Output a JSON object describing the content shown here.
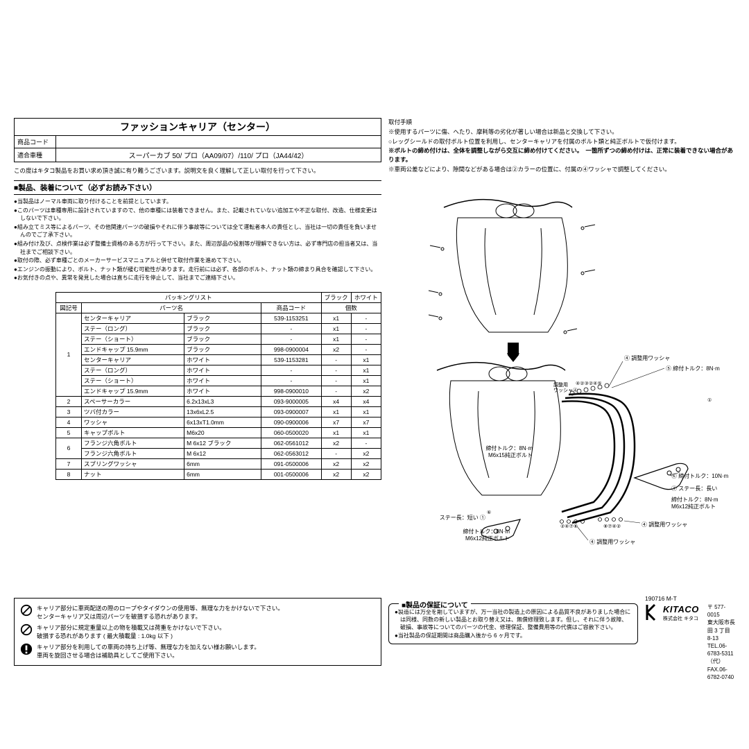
{
  "header": {
    "title": "ファッションキャリア（センター）",
    "code_label": "商品コード",
    "code_value": "",
    "model_label": "適合車種",
    "model_value": "スーパーカブ 50/ プロ（AA09/07）/110/ プロ（JA44/42）"
  },
  "intro": "この度はキタコ製品をお買い求め頂き誠に有り難うございます。説明文を良く理解して正しい取付を行って下さい。",
  "section1_title": "■製品、装着について（必ずお読み下さい）",
  "bullets": [
    "●当製品はノーマル車両に取り付けることを前提としています。",
    "●このパーツは車種専用に設計されていますので、他の車種には装着できません。また、記載されていない追加工や不正な取付、改造、仕様変更はしないで下さい。",
    "●組み立てミス等によるパーツ、その他関連パーツの破損やそれに伴う事故等については全て運転者本人の責任とし、当社は一切の責任を負いませんのでご了承下さい。",
    "●組み付け及び、点検作業は必ず整備士資格のある方が行って下さい。また、周辺部品の役割等が理解できない方は、必ず専門店の担当者又は、当社までご相談下さい。",
    "●取付の際、必ず車種ごとのメーカーサービスマニュアルと併せて取付作業を進めて下さい。",
    "●エンジンの振動により、ボルト、ナット類が緩む可能性があります。走行前には必ず、各部のボルト、ナット類の締まり具合を確認して下さい。",
    "●お気付きの点や、異常を発見した場合は直ちに走行を停止して、当社までご連絡下さい。"
  ],
  "packing": {
    "title": "パッキングリスト",
    "cols": {
      "no": "図記号",
      "name": "パーツ名",
      "code": "商品コード",
      "qty": "個数",
      "black": "ブラック",
      "white": "ホワイト"
    },
    "rows": [
      {
        "no": "1",
        "name": "センターキャリア",
        "spec": "ブラック",
        "code": "539-1153251",
        "b": "x1",
        "w": "-",
        "span": 8
      },
      {
        "no": "",
        "name": "ステー（ロング）",
        "spec": "ブラック",
        "code": "-",
        "b": "x1",
        "w": "-"
      },
      {
        "no": "",
        "name": "ステー（ショート）",
        "spec": "ブラック",
        "code": "-",
        "b": "x1",
        "w": "-"
      },
      {
        "no": "",
        "name": "エンドキャップ 15.9mm",
        "spec": "ブラック",
        "code": "998-0900004",
        "b": "x2",
        "w": "-"
      },
      {
        "no": "",
        "name": "センターキャリア",
        "spec": "ホワイト",
        "code": "539-1153281",
        "b": "-",
        "w": "x1"
      },
      {
        "no": "",
        "name": "ステー（ロング）",
        "spec": "ホワイト",
        "code": "-",
        "b": "-",
        "w": "x1"
      },
      {
        "no": "",
        "name": "ステー（ショート）",
        "spec": "ホワイト",
        "code": "-",
        "b": "-",
        "w": "x1"
      },
      {
        "no": "",
        "name": "エンドキャップ 15.9mm",
        "spec": "ホワイト",
        "code": "998-0900010",
        "b": "-",
        "w": "x2"
      },
      {
        "no": "2",
        "name": "スペーサーカラー",
        "spec": "6.2x13xL3",
        "code": "093-9000005",
        "b": "x4",
        "w": "x4"
      },
      {
        "no": "3",
        "name": "ツバ付カラー",
        "spec": "13x6xL2.5",
        "code": "093-0900007",
        "b": "x1",
        "w": "x1"
      },
      {
        "no": "4",
        "name": "ワッシャ",
        "spec": "6x13xT1.0mm",
        "code": "090-0900006",
        "b": "x7",
        "w": "x7"
      },
      {
        "no": "5",
        "name": "キャップボルト",
        "spec": "M6x20",
        "code": "060-0500020",
        "b": "x1",
        "w": "x1"
      },
      {
        "no": "6",
        "name": "フランジ六角ボルト",
        "spec": "M 6x12 ブラック",
        "code": "062-0561012",
        "b": "x2",
        "w": "-",
        "span": 2
      },
      {
        "no": "",
        "name": "フランジ六角ボルト",
        "spec": "M 6x12",
        "code": "062-0563012",
        "b": "-",
        "w": "x2"
      },
      {
        "no": "7",
        "name": "スプリングワッシャ",
        "spec": "6mm",
        "code": "091-0500006",
        "b": "x2",
        "w": "x2"
      },
      {
        "no": "8",
        "name": "ナット",
        "spec": "6mm",
        "code": "001-0500006",
        "b": "x2",
        "w": "x2"
      }
    ]
  },
  "warnings": [
    "キャリア部分に車両配送の際のロープやタイダウンの使用等、無理な力をかけないで下さい。\nセンターキャリア又は周辺パーツを破損する恐れがあります。",
    "キャリア部分に規定重量以上の物を積載又は荷重をかけないで下さい。\n破損する恐れがあります ( 最大積載量 : 1.0kg 以下 )",
    "キャリア部分を利用しての車両の持ち上げ等、無理な力を加えない様お願いします。\n車両を旋回させる場合は補助具としてご使用下さい。"
  ],
  "steps_title": "取付手順",
  "steps": [
    "※使用するパーツに傷、へたり、摩耗等の劣化が著しい場合は新品と交換して下さい。",
    "○レッグシールドの取付ボルト位置を利用し、センターキャリアを付属のボルト類と純正ボルトで仮付けます。",
    "※ボルトの締め付けは、全体を調整しながら交互に締め付けてください。　一箇所ずつの締め付けは、正常に装着できない場合があります。",
    "※車両公差などにより、隙間などがある場合は②カラーの位置に、付属の④ワッシャで調整してください。"
  ],
  "diagram_labels": {
    "torque8": "締付トルク：8N·m",
    "torque10": "締付トルク：10N·m",
    "adj_washer": "調整用ワッシャ",
    "adj_washer4": "④ 調整用ワッシャ",
    "bolt_m6x15": "M6x15純正ボルト",
    "bolt_m6x12": "M6x12純正ボルト",
    "stay_long": "① ステー長：長い",
    "stay_short": "ステー長：短い ①",
    "nums": "④②③②④⑤"
  },
  "warranty": {
    "title": "■製品の保証について",
    "lines": [
      "●製造には万全を期していますが、万一当社の製造上の原因による品質不良がありました場合には同様、同数の新しい製品とお取り替え又は、無償修理致します。但し、それに伴う故障、破損、事故等についてのパーツの代金、修理保証、整備費用等の代償はご容赦下さい。",
      "●当社製品の保証期間は商品購入後から 6 ヶ月です。"
    ]
  },
  "footer": {
    "doc": "190716 M-T",
    "logo": "KITACO",
    "sub": "株式会社 キタコ",
    "addr1": "〒 577-0015",
    "addr2": "東大阪市長田 3 丁目 8-13",
    "tel": "TEL.06-6783-5311 （代）",
    "fax": "FAX.06-6782-0740"
  },
  "colors": {
    "line": "#000000",
    "bg": "#ffffff"
  }
}
